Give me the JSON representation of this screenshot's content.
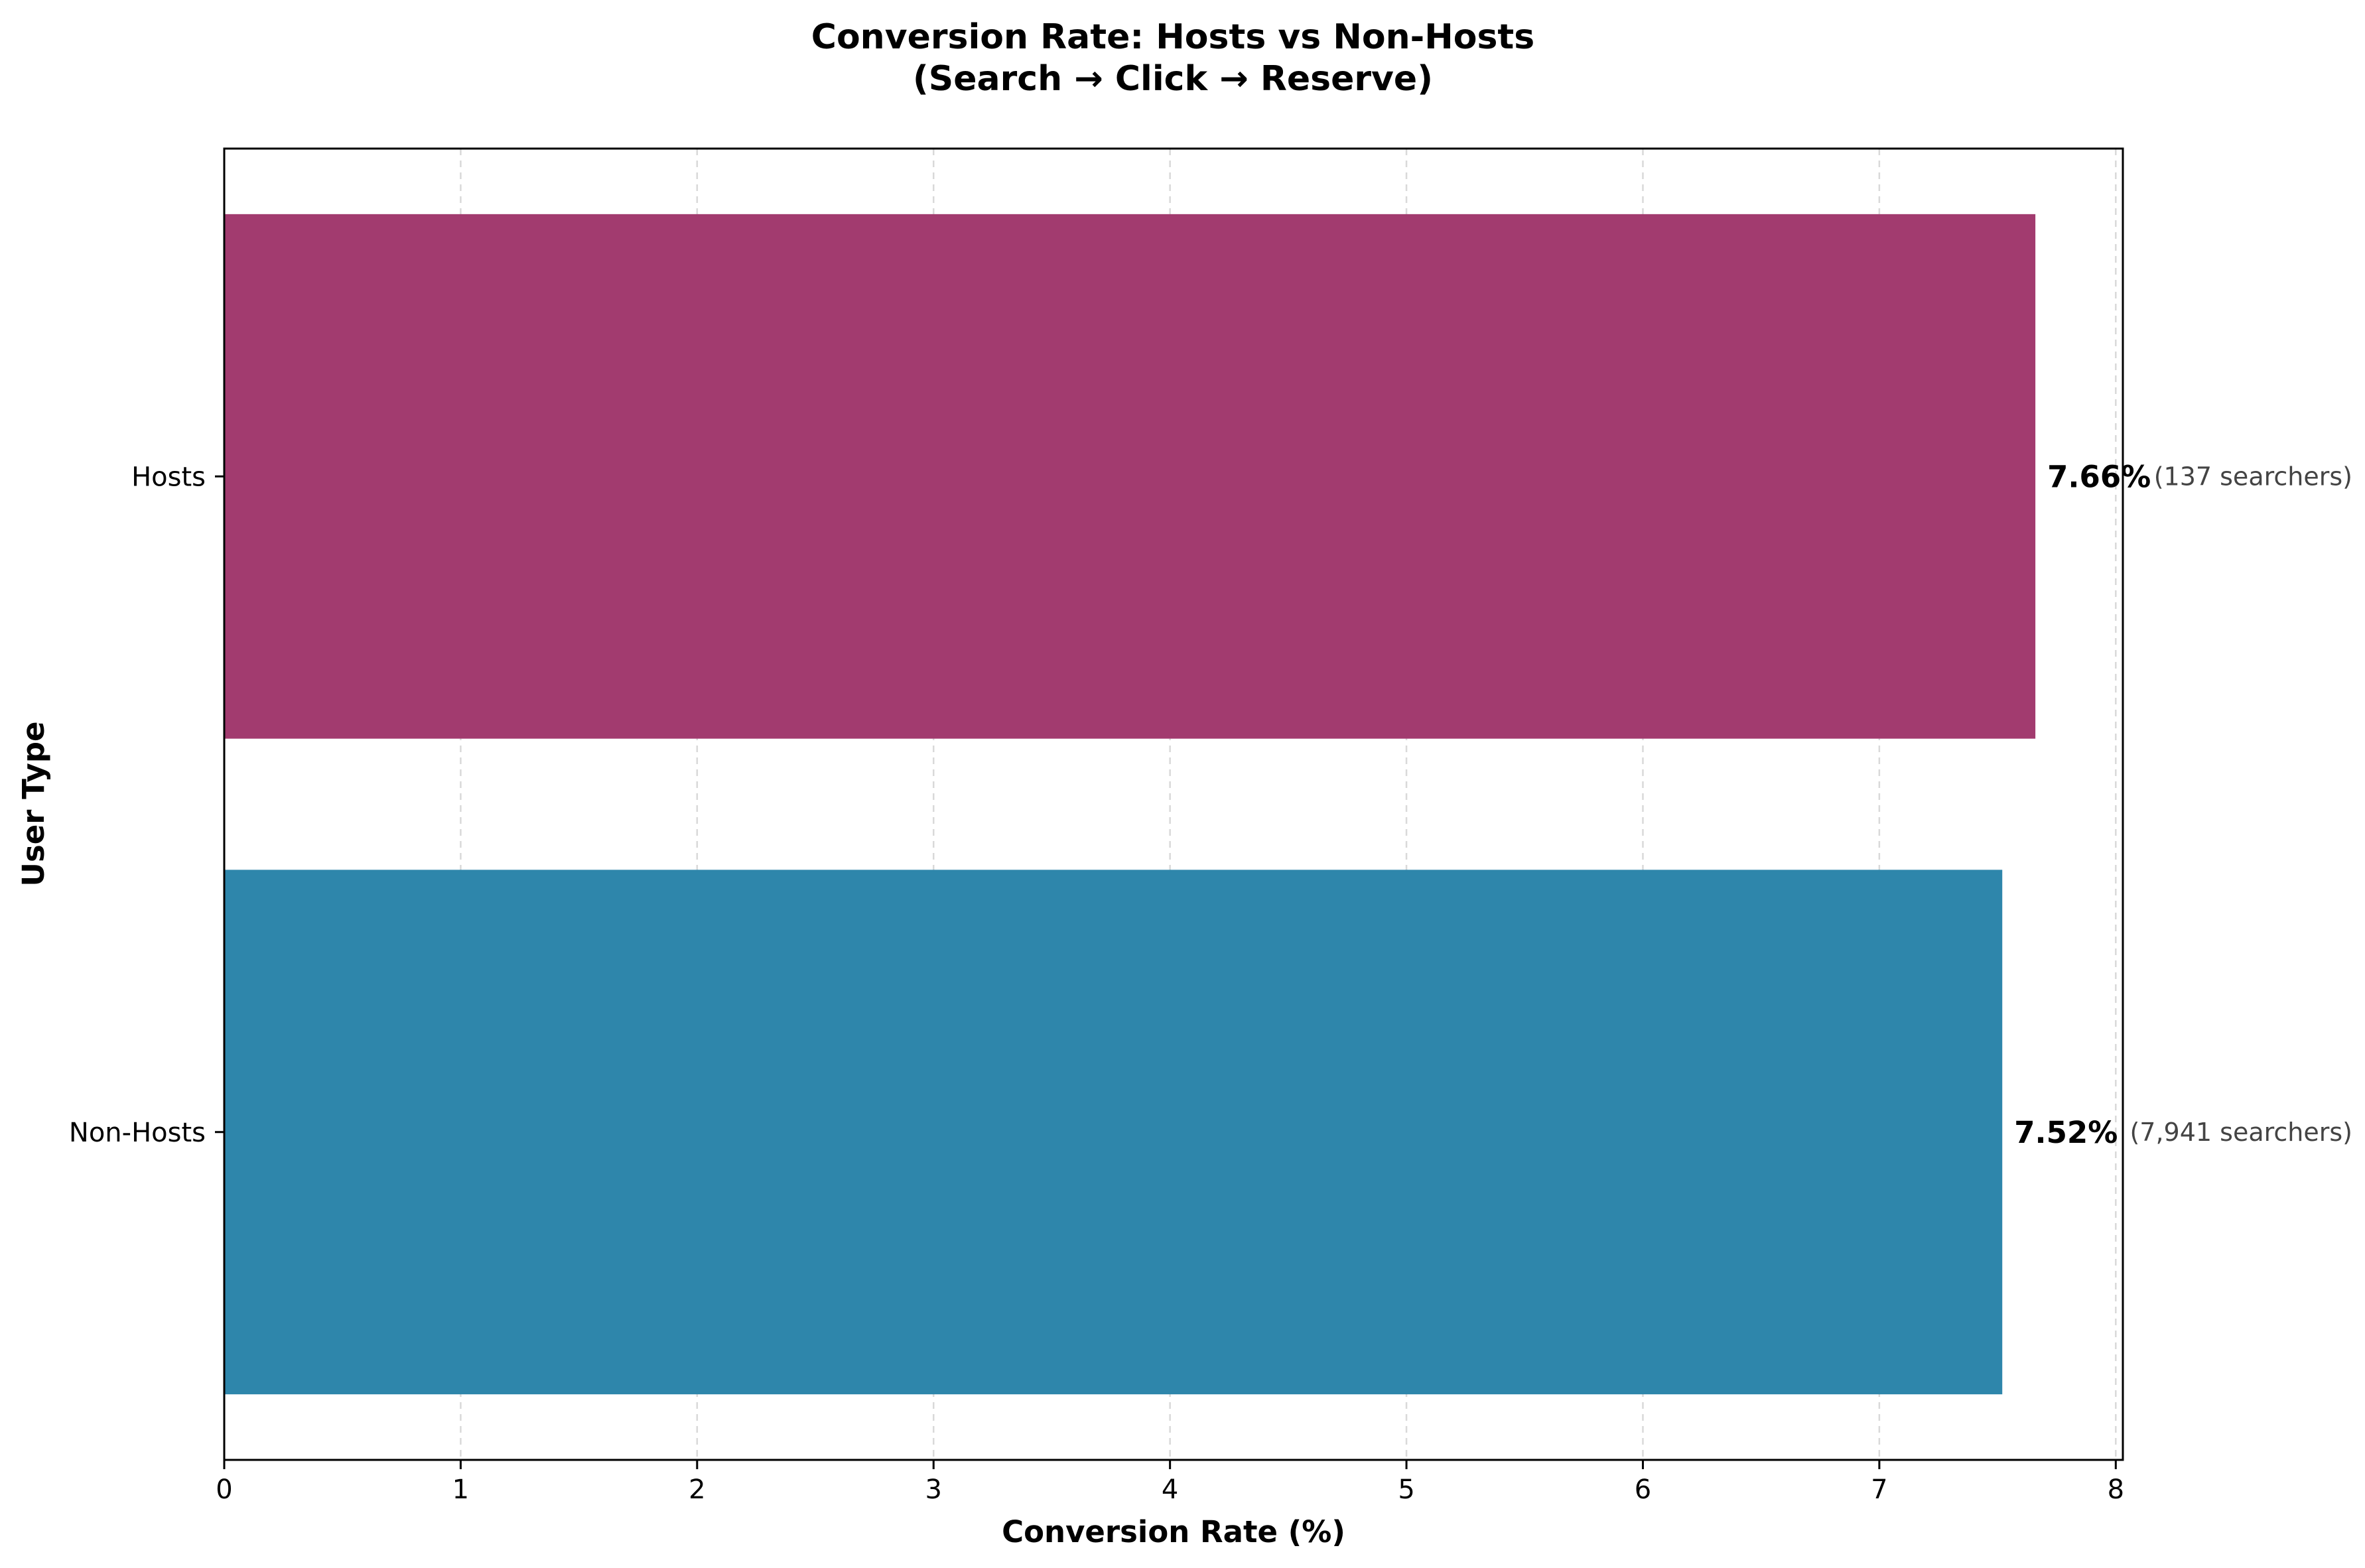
{
  "chart_data": {
    "type": "bar",
    "orientation": "horizontal",
    "title_line1": "Conversion Rate: Hosts vs Non-Hosts",
    "title_line2": "(Search → Click → Reserve)",
    "xlabel": "Conversion Rate (%)",
    "ylabel": "User Type",
    "xlim": [
      0,
      8.03
    ],
    "xticks": [
      0,
      1,
      2,
      3,
      4,
      5,
      6,
      7,
      8
    ],
    "grid": "x-dashed",
    "categories": [
      "Hosts",
      "Non-Hosts"
    ],
    "values": [
      7.66,
      7.52
    ],
    "colors": [
      "#a23b6f",
      "#2e86ab"
    ],
    "value_labels": [
      "7.66%",
      "7.52%"
    ],
    "note_labels": [
      "(137 searchers)",
      "(7,941 searchers)"
    ]
  }
}
